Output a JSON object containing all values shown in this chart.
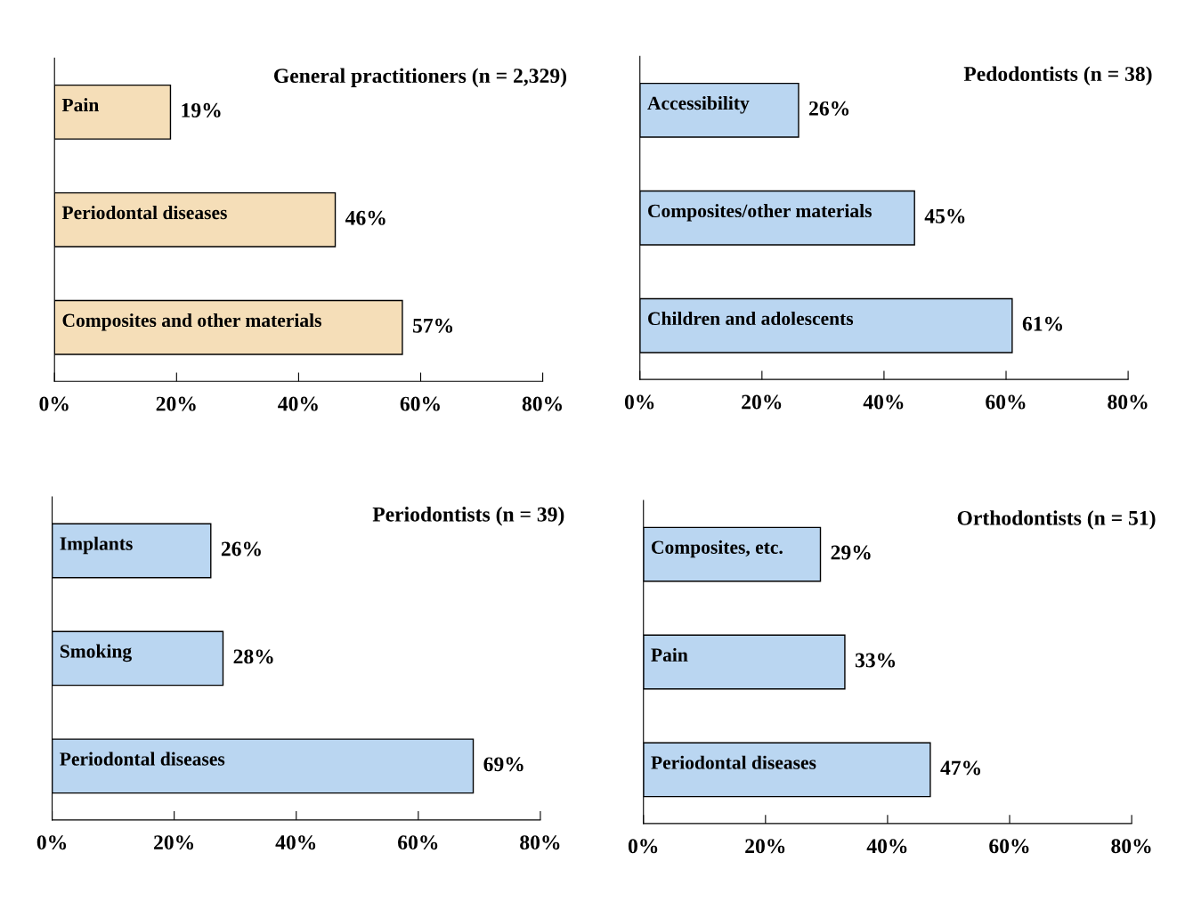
{
  "chart_data": [
    {
      "type": "bar",
      "orientation": "horizontal",
      "title": "General practitioners (n = 2,329)",
      "categories": [
        "Pain",
        "Periodontal diseases",
        "Composites and other materials"
      ],
      "values": [
        19,
        46,
        57
      ],
      "value_labels": [
        "19%",
        "46%",
        "57%"
      ],
      "color": "#f5deb8",
      "xlim": [
        0,
        80
      ],
      "xticks": [
        {
          "value": 0,
          "label": "0%"
        },
        {
          "value": 20,
          "label": "20%"
        },
        {
          "value": 40,
          "label": "40%"
        },
        {
          "value": 60,
          "label": "60%"
        },
        {
          "value": 80,
          "label": "80%"
        }
      ],
      "tick_labels": "x",
      "grid": false,
      "legend": false
    },
    {
      "type": "bar",
      "orientation": "horizontal",
      "title": "Pedodontists (n = 38)",
      "categories": [
        "Accessibility",
        "Composites/other materials",
        "Children and adolescents"
      ],
      "values": [
        26,
        45,
        61
      ],
      "value_labels": [
        "26%",
        "45%",
        "61%"
      ],
      "color": "#bad6f1",
      "xlim": [
        0,
        80
      ],
      "xticks": [
        {
          "value": 0,
          "label": "0%"
        },
        {
          "value": 20,
          "label": "20%"
        },
        {
          "value": 40,
          "label": "40%"
        },
        {
          "value": 60,
          "label": "60%"
        },
        {
          "value": 80,
          "label": "80%"
        }
      ],
      "tick_labels": "x",
      "grid": false,
      "legend": false
    },
    {
      "type": "bar",
      "orientation": "horizontal",
      "title": "Periodontists (n = 39)",
      "categories": [
        "Implants",
        "Smoking",
        "Periodontal diseases"
      ],
      "values": [
        26,
        28,
        69
      ],
      "value_labels": [
        "26%",
        "28%",
        "69%"
      ],
      "color": "#bad6f1",
      "xlim": [
        0,
        80
      ],
      "xticks": [
        {
          "value": 0,
          "label": "0%"
        },
        {
          "value": 20,
          "label": "20%"
        },
        {
          "value": 40,
          "label": "40%"
        },
        {
          "value": 60,
          "label": "60%"
        },
        {
          "value": 80,
          "label": "80%"
        }
      ],
      "tick_labels": "x",
      "grid": false,
      "legend": false
    },
    {
      "type": "bar",
      "orientation": "horizontal",
      "title": "Orthodontists (n = 51)",
      "categories": [
        "Composites, etc.",
        "Pain",
        "Periodontal diseases"
      ],
      "values": [
        29,
        33,
        47
      ],
      "value_labels": [
        "29%",
        "33%",
        "47%"
      ],
      "color": "#bad6f1",
      "xlim": [
        0,
        80
      ],
      "xticks": [
        {
          "value": 0,
          "label": "0%"
        },
        {
          "value": 20,
          "label": "20%"
        },
        {
          "value": 40,
          "label": "40%"
        },
        {
          "value": 60,
          "label": "60%"
        },
        {
          "value": 80,
          "label": "80%"
        }
      ],
      "tick_labels": "x",
      "grid": false,
      "legend": false
    }
  ]
}
